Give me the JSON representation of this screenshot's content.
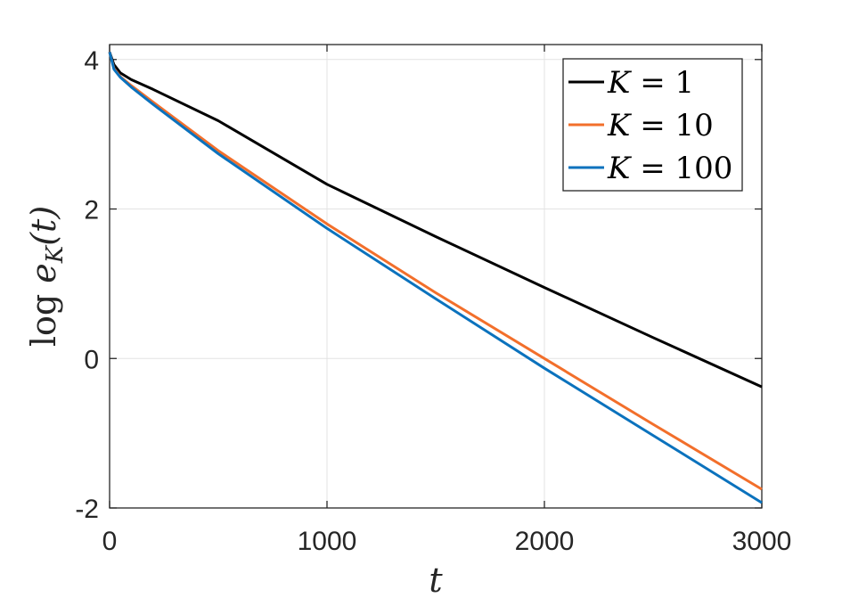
{
  "chart_data": {
    "type": "line",
    "xlabel": "t",
    "ylabel": "log e_K(t)",
    "ylabel_parts": {
      "fn": "log",
      "var": "e",
      "sub": "K",
      "arg": "(t)"
    },
    "xlim": [
      0,
      3000
    ],
    "ylim": [
      -2,
      4.2
    ],
    "xticks": [
      0,
      1000,
      2000,
      3000
    ],
    "xtick_labels": [
      "0",
      "1000",
      "2000",
      "3000"
    ],
    "yticks": [
      -2,
      0,
      2,
      4
    ],
    "ytick_labels": [
      "-2",
      "0",
      "2",
      "4"
    ],
    "grid": true,
    "legend_position": "top-right",
    "series": [
      {
        "name": "K = 1",
        "legend_var": "K",
        "legend_rhs": "= 1",
        "color": "#000000",
        "x": [
          0,
          20,
          50,
          100,
          200,
          500,
          1000,
          1500,
          2000,
          2500,
          3000
        ],
        "y": [
          4.1,
          3.93,
          3.82,
          3.73,
          3.6,
          3.18,
          2.33,
          1.63,
          0.95,
          0.28,
          -0.38
        ]
      },
      {
        "name": "K = 10",
        "legend_var": "K",
        "legend_rhs": "= 10",
        "color": "#f26f2b",
        "x": [
          0,
          20,
          50,
          100,
          200,
          500,
          1000,
          1500,
          2000,
          2500,
          3000
        ],
        "y": [
          4.1,
          3.88,
          3.77,
          3.65,
          3.43,
          2.78,
          1.8,
          0.88,
          0.0,
          -0.88,
          -1.75
        ]
      },
      {
        "name": "K = 100",
        "legend_var": "K",
        "legend_rhs": "= 100",
        "color": "#0b72bd",
        "x": [
          0,
          20,
          50,
          100,
          200,
          500,
          1000,
          1500,
          2000,
          2500,
          3000
        ],
        "y": [
          4.1,
          3.87,
          3.76,
          3.63,
          3.4,
          2.74,
          1.74,
          0.8,
          -0.13,
          -1.03,
          -1.93
        ]
      }
    ]
  }
}
